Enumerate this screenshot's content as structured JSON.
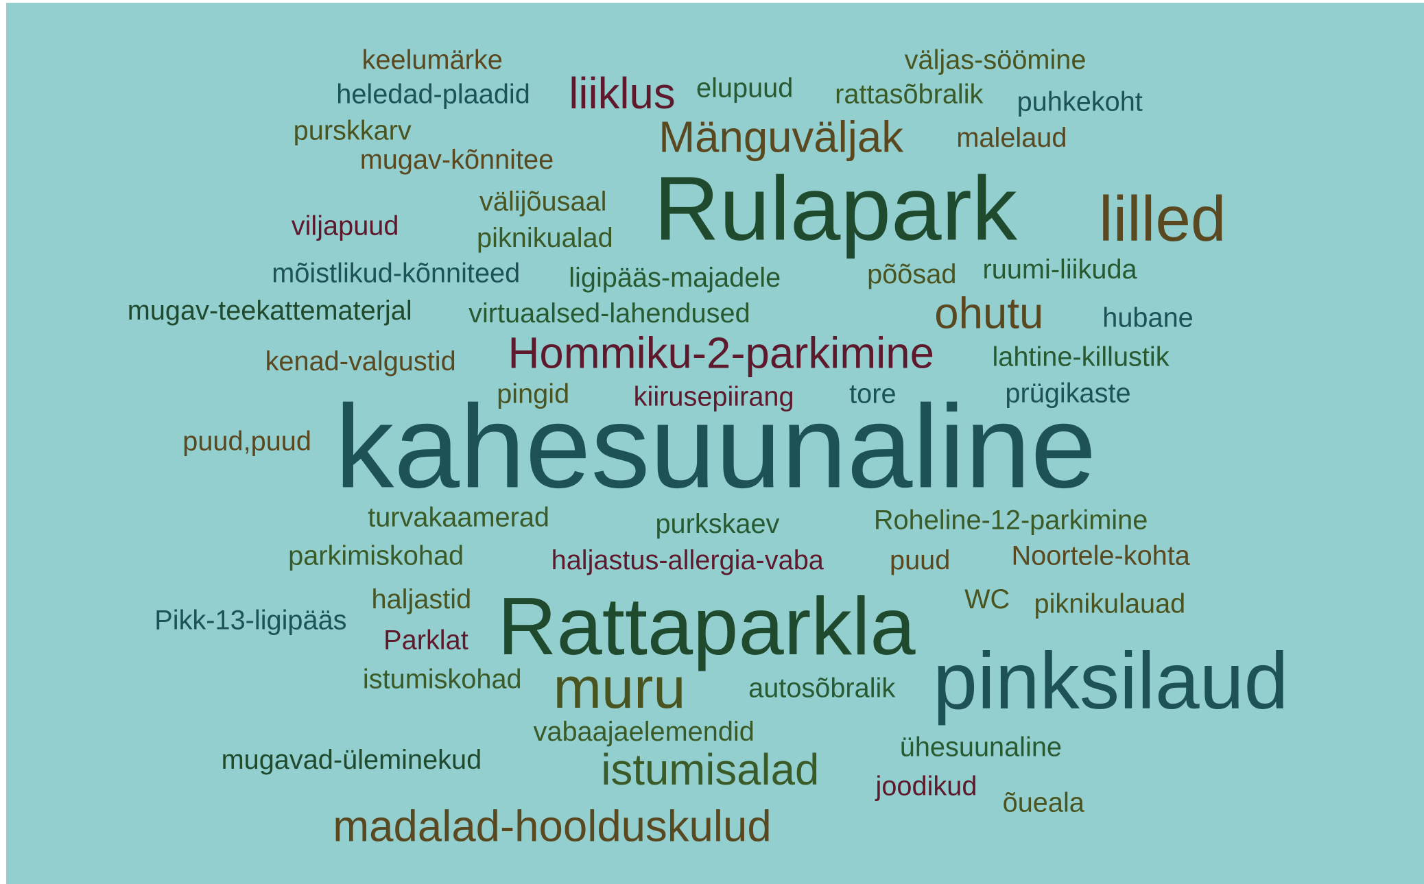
{
  "words": [
    "keelumärke",
    "väljas-söömine",
    "heledad-plaadid",
    "liiklus",
    "elupuud",
    "rattasõbralik",
    "puhkekoht",
    "purskkarv",
    "Mänguväljak",
    "malelaud",
    "mugav-kõnnitee",
    "Rulapark",
    "lilled",
    "välijõusaal",
    "viljapuud",
    "piknikualad",
    "mõistlikud-kõnniteed",
    "ligipääs-majadele",
    "põõsad",
    "ruumi-liikuda",
    "mugav-teekattematerjal",
    "virtuaalsed-lahendused",
    "ohutu",
    "hubane",
    "kenad-valgustid",
    "Hommiku-2-parkimine",
    "lahtine-killustik",
    "pingid",
    "kiirusepiirang",
    "tore",
    "prügikaste",
    "puud,puud",
    "kahesuunaline",
    "turvakaamerad",
    "purkskaev",
    "Roheline-12-parkimine",
    "parkimiskohad",
    "haljastus-allergia-vaba",
    "puud",
    "Noortele-kohta",
    "haljastid",
    "WC",
    "piknikulauad",
    "Pikk-13-ligipääs",
    "Rattaparkla",
    "Parklat",
    "istumiskohad",
    "muru",
    "autosõbralik",
    "pinksilaud",
    "vabaajaelemendid",
    "ühesuunaline",
    "mugavad-üleminekud",
    "istumisalad",
    "joodikud",
    "õueala",
    "madalad-hoolduskulud"
  ]
}
